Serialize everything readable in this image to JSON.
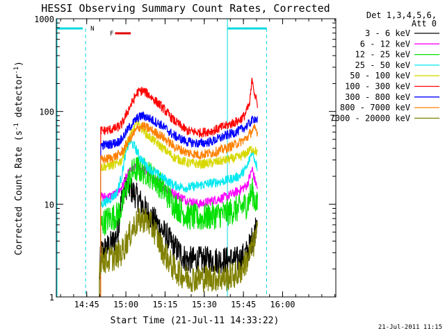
{
  "chart_data": {
    "type": "line",
    "title": "HESSI Observing Summary Count Rates, Corrected",
    "xlabel": "Start Time (21-Jul-11 14:33:22)",
    "ylabel_main": "Corrected Count Rate (s",
    "ylabel_sup1": "-1",
    "ylabel_mid": " detector",
    "ylabel_sup2": "-1",
    "ylabel_end": ")",
    "y_scale": "log",
    "ylim": [
      1,
      1000
    ],
    "xlim_minutes": [
      0,
      107
    ],
    "x_ticks": [
      {
        "t": 11.63,
        "label": "14:45"
      },
      {
        "t": 26.63,
        "label": "15:00"
      },
      {
        "t": 41.63,
        "label": "15:15"
      },
      {
        "t": 56.63,
        "label": "15:30"
      },
      {
        "t": 71.63,
        "label": "15:45"
      },
      {
        "t": 86.63,
        "label": "16:00"
      }
    ],
    "y_ticks": [
      {
        "v": 1,
        "label": "1"
      },
      {
        "v": 10,
        "label": "10"
      },
      {
        "v": 100,
        "label": "100"
      },
      {
        "v": 1000,
        "label": "1000"
      }
    ],
    "legend_header": [
      "Det 1,3,4,5,6,",
      "Att 0"
    ],
    "legend_position": "right",
    "timestamp": "21-Jul-2011 11:15",
    "annotations": {
      "night_marker": "N",
      "flare_marker": "F",
      "night_color": "#00d8e0",
      "flare_color": "#e00000"
    },
    "series": [
      {
        "name": "3 - 6 keV",
        "color": "#000000",
        "x": [
          16.5,
          17,
          20,
          22,
          23.5,
          25,
          27,
          30,
          35,
          40,
          45,
          50,
          55,
          60,
          65,
          70,
          73,
          76,
          77
        ],
        "y": [
          1.5,
          3,
          3.5,
          4,
          5,
          12,
          16,
          13,
          8,
          5.5,
          3.5,
          2.5,
          2.5,
          2.5,
          2.5,
          2.5,
          3,
          5,
          8
        ]
      },
      {
        "name": "6 - 12 keV",
        "color": "#ff00ff",
        "x": [
          17,
          20,
          23,
          25,
          27,
          29,
          31,
          35,
          40,
          45,
          50,
          55,
          60,
          65,
          70,
          73,
          75,
          76,
          77
        ],
        "y": [
          12,
          12,
          13,
          15,
          20,
          24,
          25,
          22,
          16,
          13,
          11,
          10,
          11,
          12,
          14,
          16,
          24,
          18,
          15
        ]
      },
      {
        "name": "12 - 25 keV",
        "color": "#00e000",
        "x": [
          17,
          20,
          23,
          25,
          27,
          29,
          31,
          35,
          40,
          45,
          50,
          55,
          60,
          65,
          70,
          73,
          75,
          76,
          77
        ],
        "y": [
          6,
          7,
          7.5,
          9,
          16,
          22,
          24,
          22,
          16,
          10,
          7.5,
          7,
          7.5,
          8,
          9,
          10,
          14,
          11,
          9.5
        ]
      },
      {
        "name": "25 - 50 keV",
        "color": "#00e8f0",
        "x": [
          17,
          20,
          23,
          25,
          26.5,
          28,
          30,
          32,
          35,
          40,
          45,
          50,
          55,
          60,
          65,
          70,
          73,
          75,
          76,
          77
        ],
        "y": [
          10,
          11,
          13,
          20,
          35,
          48,
          42,
          32,
          25,
          20,
          16,
          15,
          16,
          17,
          18,
          20,
          25,
          38,
          30,
          25
        ]
      },
      {
        "name": "50 - 100 keV",
        "color": "#d8d800",
        "x": [
          17,
          20,
          23,
          25,
          27,
          29,
          31,
          33,
          35,
          40,
          45,
          50,
          55,
          60,
          65,
          70,
          73,
          75,
          76,
          77
        ],
        "y": [
          25,
          26,
          27,
          30,
          45,
          60,
          75,
          65,
          55,
          42,
          32,
          28,
          27,
          28,
          30,
          32,
          36,
          40,
          38,
          36
        ]
      },
      {
        "name": "100 - 300 keV",
        "color": "#ff0000",
        "x": [
          17,
          20,
          23,
          25,
          28,
          31,
          33,
          35,
          40,
          45,
          50,
          55,
          60,
          65,
          70,
          72,
          74,
          75,
          76,
          77
        ],
        "y": [
          62,
          63,
          66,
          72,
          110,
          160,
          168,
          155,
          115,
          80,
          62,
          59,
          62,
          70,
          80,
          90,
          120,
          230,
          150,
          120
        ]
      },
      {
        "name": "300 - 800 keV",
        "color": "#0000ff",
        "x": [
          17,
          20,
          23,
          25,
          28,
          31,
          33,
          35,
          40,
          45,
          50,
          55,
          60,
          65,
          70,
          73,
          75,
          76,
          77
        ],
        "y": [
          43,
          44,
          46,
          50,
          68,
          85,
          90,
          86,
          72,
          55,
          47,
          45,
          48,
          55,
          62,
          70,
          80,
          85,
          80
        ]
      },
      {
        "name": "800 - 7000 keV",
        "color": "#ff8000",
        "x": [
          17,
          20,
          23,
          25,
          28,
          31,
          33,
          35,
          40,
          45,
          50,
          55,
          60,
          65,
          70,
          73,
          75,
          76,
          77
        ],
        "y": [
          30,
          31,
          33,
          36,
          50,
          65,
          70,
          66,
          55,
          42,
          36,
          34,
          36,
          40,
          46,
          52,
          62,
          65,
          60
        ]
      },
      {
        "name": "7000 - 20000 keV",
        "color": "#808000",
        "x": [
          16.5,
          17,
          20,
          23,
          25,
          27,
          30,
          33,
          35,
          38,
          40,
          45,
          50,
          55,
          60,
          65,
          70,
          73,
          76,
          77
        ],
        "y": [
          2,
          2.5,
          2.5,
          2.8,
          3,
          4,
          6,
          7,
          6.5,
          5,
          3.5,
          2,
          1.6,
          1.6,
          1.6,
          1.6,
          1.8,
          2.5,
          4,
          5
        ]
      }
    ]
  }
}
